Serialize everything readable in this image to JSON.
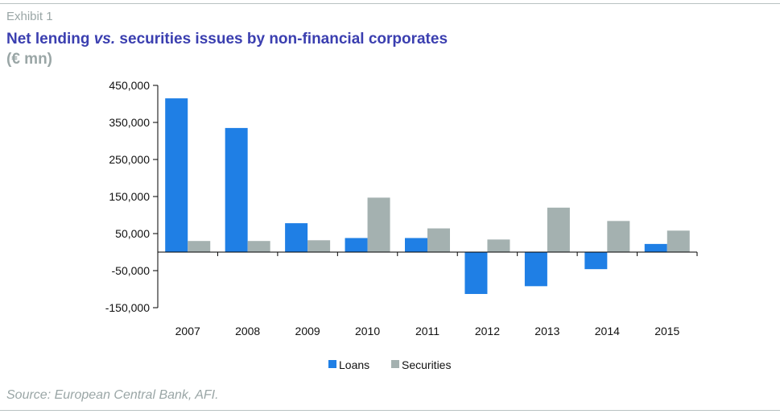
{
  "exhibit": "Exhibit 1",
  "title": {
    "part1": "Net lending ",
    "part2": "vs.",
    "part3": " securities issues by non-financial corporates"
  },
  "subtitle": "(€ mn)",
  "source": "Source: European Central Bank, AFI.",
  "colors": {
    "loans": "#1f7fe5",
    "securities": "#a4b1b0",
    "axis": "#000000"
  },
  "chart_data": {
    "type": "bar",
    "categories": [
      "2007",
      "2008",
      "2009",
      "2010",
      "2011",
      "2012",
      "2013",
      "2014",
      "2015"
    ],
    "series": [
      {
        "name": "Loans",
        "values": [
          415000,
          335000,
          78000,
          38000,
          38000,
          -113000,
          -92000,
          -46000,
          22000
        ]
      },
      {
        "name": "Securities",
        "values": [
          30000,
          30000,
          32000,
          147000,
          64000,
          34000,
          120000,
          84000,
          58000
        ]
      }
    ],
    "yticks": [
      450000,
      350000,
      250000,
      150000,
      50000,
      -50000,
      -150000
    ],
    "ytick_labels": [
      "450,000",
      "350,000",
      "250,000",
      "150,000",
      "50,000",
      "-50,000",
      "-150,000"
    ],
    "ylim": [
      -150000,
      450000
    ],
    "legend_position": "bottom",
    "grid": false
  }
}
